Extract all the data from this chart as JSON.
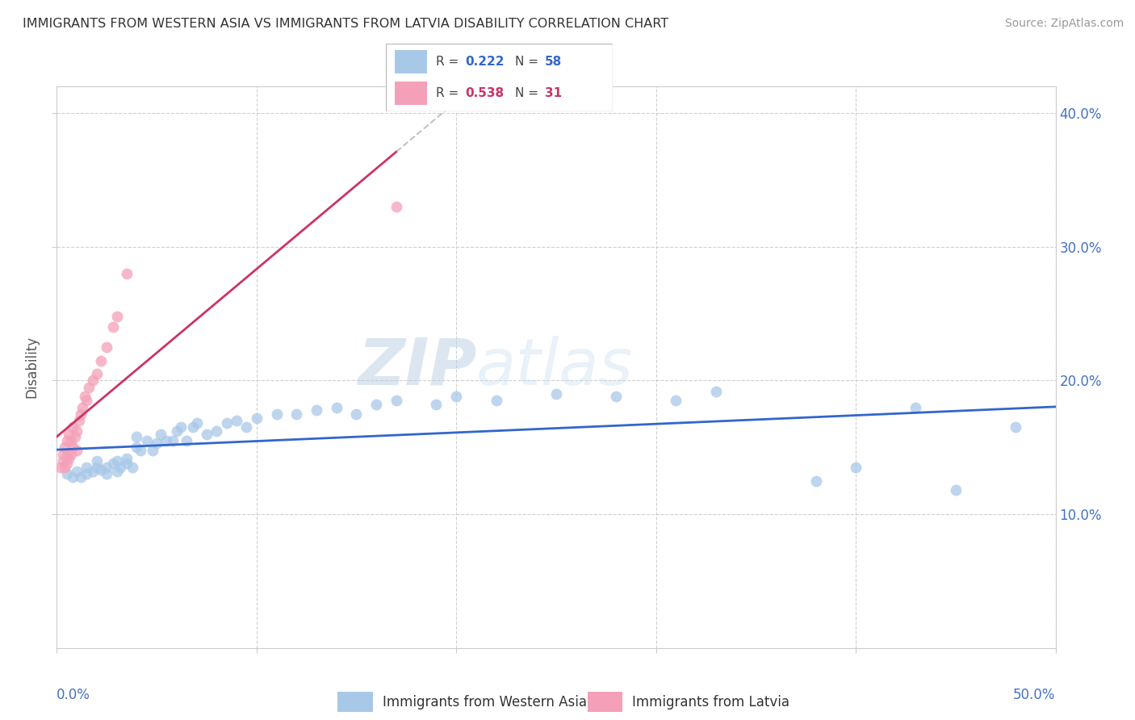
{
  "title": "IMMIGRANTS FROM WESTERN ASIA VS IMMIGRANTS FROM LATVIA DISABILITY CORRELATION CHART",
  "source": "Source: ZipAtlas.com",
  "ylabel": "Disability",
  "xlim": [
    0.0,
    0.5
  ],
  "ylim": [
    0.0,
    0.42
  ],
  "yticks": [
    0.1,
    0.2,
    0.3,
    0.4
  ],
  "ytick_labels": [
    "10.0%",
    "20.0%",
    "30.0%",
    "40.0%"
  ],
  "xticks": [
    0.0,
    0.1,
    0.2,
    0.3,
    0.4,
    0.5
  ],
  "color_blue": "#a8c8e8",
  "color_pink": "#f4a0b8",
  "color_blue_line": "#3366cc",
  "color_pink_line": "#cc3366",
  "watermark_zip": "ZIP",
  "watermark_atlas": "atlas",
  "blue_x": [
    0.005,
    0.008,
    0.01,
    0.012,
    0.015,
    0.015,
    0.018,
    0.02,
    0.02,
    0.022,
    0.025,
    0.025,
    0.028,
    0.03,
    0.03,
    0.032,
    0.035,
    0.035,
    0.038,
    0.04,
    0.04,
    0.042,
    0.045,
    0.048,
    0.05,
    0.052,
    0.055,
    0.058,
    0.06,
    0.062,
    0.065,
    0.068,
    0.07,
    0.075,
    0.08,
    0.085,
    0.09,
    0.095,
    0.1,
    0.11,
    0.12,
    0.13,
    0.14,
    0.15,
    0.16,
    0.17,
    0.19,
    0.2,
    0.22,
    0.25,
    0.28,
    0.31,
    0.33,
    0.38,
    0.4,
    0.43,
    0.45,
    0.48
  ],
  "blue_y": [
    0.13,
    0.128,
    0.132,
    0.128,
    0.13,
    0.135,
    0.132,
    0.135,
    0.14,
    0.133,
    0.13,
    0.135,
    0.138,
    0.132,
    0.14,
    0.135,
    0.138,
    0.142,
    0.135,
    0.15,
    0.158,
    0.148,
    0.155,
    0.148,
    0.153,
    0.16,
    0.155,
    0.155,
    0.162,
    0.165,
    0.155,
    0.165,
    0.168,
    0.16,
    0.162,
    0.168,
    0.17,
    0.165,
    0.172,
    0.175,
    0.175,
    0.178,
    0.18,
    0.175,
    0.182,
    0.185,
    0.182,
    0.188,
    0.185,
    0.19,
    0.188,
    0.185,
    0.192,
    0.125,
    0.135,
    0.18,
    0.118,
    0.165
  ],
  "pink_x": [
    0.002,
    0.003,
    0.003,
    0.004,
    0.004,
    0.005,
    0.005,
    0.005,
    0.006,
    0.006,
    0.007,
    0.007,
    0.008,
    0.008,
    0.009,
    0.01,
    0.01,
    0.011,
    0.012,
    0.013,
    0.014,
    0.015,
    0.016,
    0.018,
    0.02,
    0.022,
    0.025,
    0.028,
    0.03,
    0.035,
    0.17
  ],
  "pink_y": [
    0.135,
    0.14,
    0.145,
    0.135,
    0.15,
    0.138,
    0.145,
    0.155,
    0.142,
    0.16,
    0.145,
    0.155,
    0.15,
    0.165,
    0.158,
    0.148,
    0.162,
    0.17,
    0.175,
    0.18,
    0.188,
    0.185,
    0.195,
    0.2,
    0.205,
    0.215,
    0.225,
    0.24,
    0.248,
    0.28,
    0.33
  ]
}
